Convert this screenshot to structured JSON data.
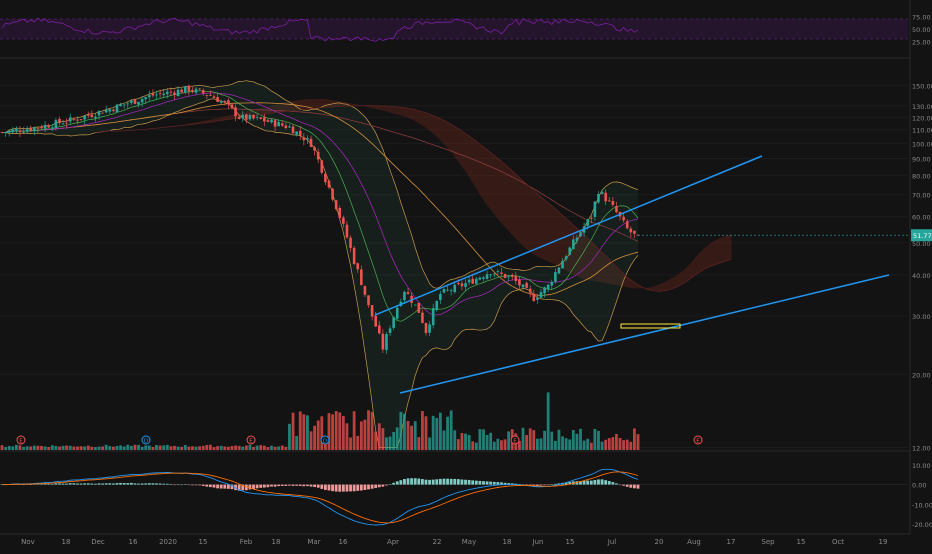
{
  "chart_data": {
    "type": "candlestick",
    "x_ticks": [
      "Nov",
      "18",
      "Dec",
      "16",
      "2020",
      "15",
      "Feb",
      "18",
      "Mar",
      "16",
      "Apr",
      "22",
      "May",
      "18",
      "Jun",
      "15",
      "Jul",
      "20",
      "Aug",
      "17",
      "Sep",
      "15",
      "Oct",
      "19"
    ],
    "last_price_label": "51.77",
    "price_axis": {
      "scale": "log",
      "ticks": [
        "150.00",
        "130.00",
        "120.00",
        "110.00",
        "100.00",
        "90.00",
        "80.00",
        "70.00",
        "60.00",
        "50.00",
        "40.00",
        "30.00",
        "20.00",
        "12.00"
      ]
    },
    "rsi_panel": {
      "ticks": [
        "75.00",
        "50.00",
        "25.00"
      ],
      "upper_band": 70,
      "lower_band": 30
    },
    "macd_panel": {
      "ticks": [
        "10.00",
        "0.00",
        "-10.00",
        "-20.00"
      ]
    },
    "event_markers": [
      "E",
      "D",
      "E",
      "D",
      "E",
      "E"
    ],
    "colors": {
      "background": "#131313",
      "up": "#26a69a",
      "down": "#ef5350",
      "trendline": "#2196f3",
      "rsi": "#7b1fa2",
      "macd_line": "#2196f3",
      "signal_line": "#ff6d00",
      "highlight_box": "#ffeb3b"
    }
  }
}
